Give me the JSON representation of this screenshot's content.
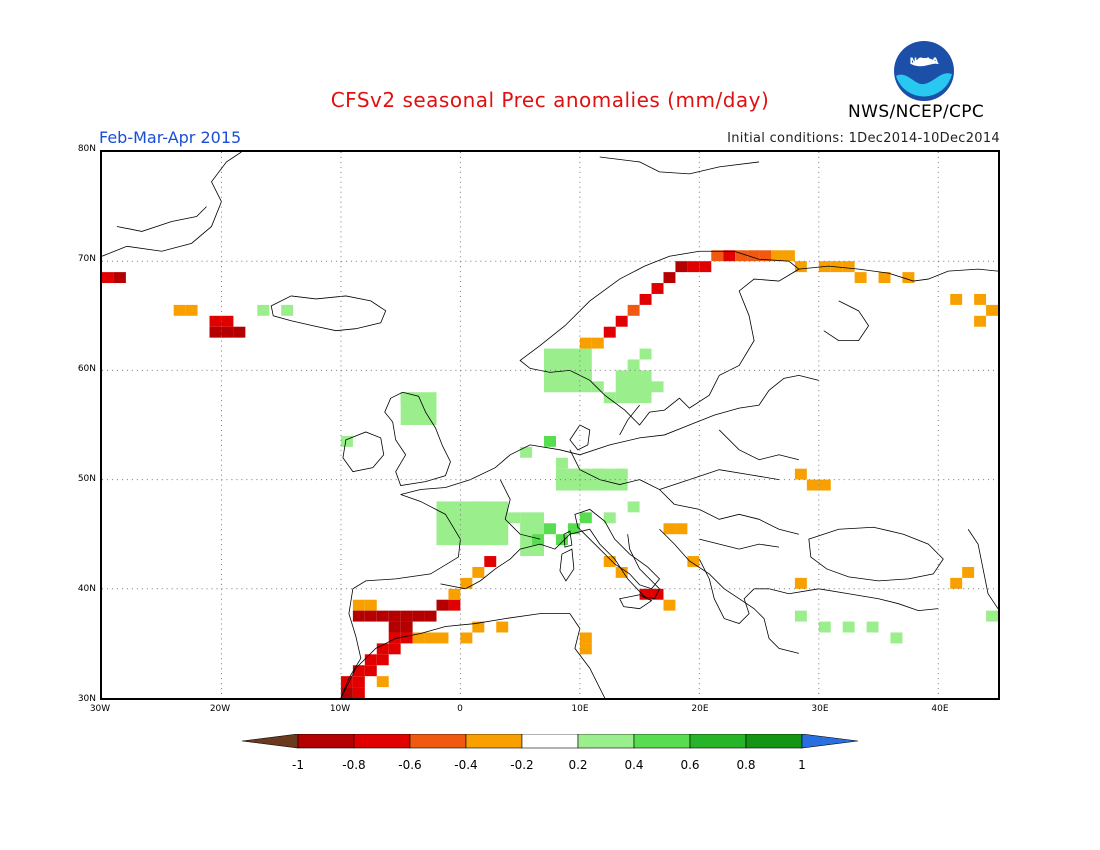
{
  "title": "CFSv2 seasonal Prec anomalies (mm/day)",
  "period": "Feb-Mar-Apr 2015",
  "initial_conditions": "Initial conditions: 1Dec2014-10Dec2014",
  "agency": "NWS/NCEP/CPC",
  "logo": {
    "text": "NOAA",
    "icon": "noaa-logo"
  },
  "map": {
    "lon_range": [
      -30,
      45
    ],
    "lat_range": [
      30,
      80
    ],
    "lat_labels": [
      "30N",
      "40N",
      "50N",
      "60N",
      "70N",
      "80N"
    ],
    "lon_labels": [
      "30W",
      "20W",
      "10W",
      "0",
      "10E",
      "20E",
      "30E",
      "40E"
    ],
    "grid": "dotted",
    "anomaly_cells": [
      {
        "lon": -30,
        "lat": 68.5,
        "v": -0.7
      },
      {
        "lon": -29,
        "lat": 68.5,
        "v": -0.8
      },
      {
        "lon": -24,
        "lat": 65.5,
        "v": -0.3
      },
      {
        "lon": -23,
        "lat": 65.5,
        "v": -0.3
      },
      {
        "lon": -21,
        "lat": 64.5,
        "v": -0.6
      },
      {
        "lon": -20,
        "lat": 64.5,
        "v": -0.6
      },
      {
        "lon": -21,
        "lat": 63.5,
        "v": -0.8
      },
      {
        "lon": -20,
        "lat": 63.5,
        "v": -0.8
      },
      {
        "lon": -19,
        "lat": 63.5,
        "v": -0.8
      },
      {
        "lon": -17,
        "lat": 65.5,
        "v": 0.3
      },
      {
        "lon": -15,
        "lat": 65.5,
        "v": 0.3
      },
      {
        "lon": 12,
        "lat": 63.5,
        "v": -0.6
      },
      {
        "lon": 13,
        "lat": 64.5,
        "v": -0.6
      },
      {
        "lon": 14,
        "lat": 65.5,
        "v": -0.5
      },
      {
        "lon": 15,
        "lat": 66.5,
        "v": -0.6
      },
      {
        "lon": 16,
        "lat": 67.5,
        "v": -0.7
      },
      {
        "lon": 17,
        "lat": 68.5,
        "v": -0.8
      },
      {
        "lon": 18,
        "lat": 69.5,
        "v": -0.8
      },
      {
        "lon": 19,
        "lat": 69.5,
        "v": -0.7
      },
      {
        "lon": 20,
        "lat": 69.5,
        "v": -0.6
      },
      {
        "lon": 21,
        "lat": 70.5,
        "v": -0.5
      },
      {
        "lon": 22,
        "lat": 70.5,
        "v": -0.6
      },
      {
        "lon": 23,
        "lat": 70.5,
        "v": -0.5
      },
      {
        "lon": 24,
        "lat": 70.5,
        "v": -0.5
      },
      {
        "lon": 25,
        "lat": 70.5,
        "v": -0.4
      },
      {
        "lon": 26,
        "lat": 70.5,
        "v": -0.3
      },
      {
        "lon": 27,
        "lat": 70.5,
        "v": -0.3
      },
      {
        "lon": 28,
        "lat": 69.5,
        "v": -0.3
      },
      {
        "lon": 30,
        "lat": 69.5,
        "v": -0.3
      },
      {
        "lon": 31,
        "lat": 69.5,
        "v": -0.3
      },
      {
        "lon": 32,
        "lat": 69.5,
        "v": -0.3
      },
      {
        "lon": 33,
        "lat": 68.5,
        "v": -0.3
      },
      {
        "lon": 35,
        "lat": 68.5,
        "v": -0.3
      },
      {
        "lon": 37,
        "lat": 68.5,
        "v": -0.3
      },
      {
        "lon": 41,
        "lat": 66.5,
        "v": -0.3
      },
      {
        "lon": 43,
        "lat": 66.5,
        "v": -0.3
      },
      {
        "lon": 44,
        "lat": 65.5,
        "v": -0.3
      },
      {
        "lon": 43,
        "lat": 64.5,
        "v": -0.3
      },
      {
        "lon": 10,
        "lat": 62.5,
        "v": -0.3
      },
      {
        "lon": 11,
        "lat": 62.5,
        "v": -0.3
      },
      {
        "lon": 9,
        "lat": 60.5,
        "v": 0.3
      },
      {
        "lon": 10,
        "lat": 59.5,
        "v": 0.3
      },
      {
        "lon": 11,
        "lat": 58.5,
        "v": 0.3
      },
      {
        "lon": 12,
        "lat": 57.5,
        "v": 0.3
      },
      {
        "lon": 14,
        "lat": 60.5,
        "v": 0.3
      },
      {
        "lon": 15,
        "lat": 61.5,
        "v": 0.3
      },
      {
        "lon": 16,
        "lat": 58.5,
        "v": 0.3
      },
      {
        "lon": -5,
        "lat": 57.5,
        "v": 0.3
      },
      {
        "lon": -4,
        "lat": 56.5,
        "v": 0.3
      },
      {
        "lon": -3,
        "lat": 55.5,
        "v": 0.3
      },
      {
        "lon": -10,
        "lat": 53.5,
        "v": 0.3
      },
      {
        "lon": 5,
        "lat": 52.5,
        "v": 0.3
      },
      {
        "lon": 7,
        "lat": 53.5,
        "v": 0.4
      },
      {
        "lon": 8,
        "lat": 51.5,
        "v": 0.3
      },
      {
        "lon": 9,
        "lat": 50.5,
        "v": 0.3
      },
      {
        "lon": 11,
        "lat": 50.5,
        "v": 0.3
      },
      {
        "lon": 13,
        "lat": 50.5,
        "v": 0.3
      },
      {
        "lon": 1,
        "lat": 47.5,
        "v": 0.3
      },
      {
        "lon": -1,
        "lat": 46.5,
        "v": 0.3
      },
      {
        "lon": 0,
        "lat": 45.5,
        "v": 0.3
      },
      {
        "lon": 2,
        "lat": 45.5,
        "v": 0.3
      },
      {
        "lon": 4,
        "lat": 46.5,
        "v": 0.3
      },
      {
        "lon": 6,
        "lat": 44.5,
        "v": 0.4
      },
      {
        "lon": 7,
        "lat": 45.5,
        "v": 0.4
      },
      {
        "lon": 8,
        "lat": 44.5,
        "v": 0.5
      },
      {
        "lon": 9,
        "lat": 45.5,
        "v": 0.4
      },
      {
        "lon": 10,
        "lat": 46.5,
        "v": 0.4
      },
      {
        "lon": 12,
        "lat": 46.5,
        "v": 0.3
      },
      {
        "lon": 14,
        "lat": 47.5,
        "v": 0.3
      },
      {
        "lon": 17,
        "lat": 45.5,
        "v": -0.3
      },
      {
        "lon": 18,
        "lat": 45.5,
        "v": -0.3
      },
      {
        "lon": 19,
        "lat": 42.5,
        "v": -0.3
      },
      {
        "lon": 12,
        "lat": 42.5,
        "v": -0.3
      },
      {
        "lon": 13,
        "lat": 41.5,
        "v": -0.3
      },
      {
        "lon": 15,
        "lat": 39.5,
        "v": -0.6
      },
      {
        "lon": 16,
        "lat": 39.5,
        "v": -0.6
      },
      {
        "lon": 17,
        "lat": 38.5,
        "v": -0.3
      },
      {
        "lon": 10,
        "lat": 35.5,
        "v": -0.3
      },
      {
        "lon": 10,
        "lat": 34.5,
        "v": -0.3
      },
      {
        "lon": 28,
        "lat": 50.5,
        "v": -0.3
      },
      {
        "lon": 29,
        "lat": 49.5,
        "v": -0.3
      },
      {
        "lon": 30,
        "lat": 49.5,
        "v": -0.3
      },
      {
        "lon": 28,
        "lat": 40.5,
        "v": -0.3
      },
      {
        "lon": 41,
        "lat": 40.5,
        "v": -0.3
      },
      {
        "lon": 42,
        "lat": 41.5,
        "v": -0.3
      },
      {
        "lon": 28,
        "lat": 37.5,
        "v": 0.3
      },
      {
        "lon": 30,
        "lat": 36.5,
        "v": 0.3
      },
      {
        "lon": 32,
        "lat": 36.5,
        "v": 0.3
      },
      {
        "lon": 34,
        "lat": 36.5,
        "v": 0.3
      },
      {
        "lon": 36,
        "lat": 35.5,
        "v": 0.3
      },
      {
        "lon": 44,
        "lat": 37.5,
        "v": 0.3
      },
      {
        "lon": -9,
        "lat": 38.5,
        "v": -0.3
      },
      {
        "lon": -8,
        "lat": 38.5,
        "v": -0.3
      },
      {
        "lon": -9,
        "lat": 37.5,
        "v": -0.8
      },
      {
        "lon": -8,
        "lat": 37.5,
        "v": -0.8
      },
      {
        "lon": -7,
        "lat": 37.5,
        "v": -0.8
      },
      {
        "lon": -6,
        "lat": 37.5,
        "v": -0.8
      },
      {
        "lon": -5,
        "lat": 37.5,
        "v": -0.8
      },
      {
        "lon": -4,
        "lat": 37.5,
        "v": -0.8
      },
      {
        "lon": -3,
        "lat": 37.5,
        "v": -0.8
      },
      {
        "lon": -2,
        "lat": 38.5,
        "v": -0.8
      },
      {
        "lon": -1,
        "lat": 38.5,
        "v": -0.6
      },
      {
        "lon": -1,
        "lat": 39.5,
        "v": -0.3
      },
      {
        "lon": 0,
        "lat": 40.5,
        "v": -0.3
      },
      {
        "lon": 1,
        "lat": 41.5,
        "v": -0.3
      },
      {
        "lon": 2,
        "lat": 42.5,
        "v": -0.6
      },
      {
        "lon": -6,
        "lat": 36.5,
        "v": -0.8
      },
      {
        "lon": -5,
        "lat": 36.5,
        "v": -0.8
      },
      {
        "lon": -6,
        "lat": 35.5,
        "v": -0.7
      },
      {
        "lon": -5,
        "lat": 35.5,
        "v": -0.6
      },
      {
        "lon": -4,
        "lat": 35.5,
        "v": -0.3
      },
      {
        "lon": -3,
        "lat": 35.5,
        "v": -0.3
      },
      {
        "lon": -2,
        "lat": 35.5,
        "v": -0.3
      },
      {
        "lon": 0,
        "lat": 35.5,
        "v": -0.3
      },
      {
        "lon": 1,
        "lat": 36.5,
        "v": -0.3
      },
      {
        "lon": 3,
        "lat": 36.5,
        "v": -0.3
      },
      {
        "lon": -7,
        "lat": 34.5,
        "v": -0.7
      },
      {
        "lon": -6,
        "lat": 34.5,
        "v": -0.6
      },
      {
        "lon": -8,
        "lat": 33.5,
        "v": -0.7
      },
      {
        "lon": -7,
        "lat": 33.5,
        "v": -0.6
      },
      {
        "lon": -9,
        "lat": 32.5,
        "v": -0.6
      },
      {
        "lon": -8,
        "lat": 32.5,
        "v": -0.6
      },
      {
        "lon": -7,
        "lat": 31.5,
        "v": -0.3
      },
      {
        "lon": -10,
        "lat": 31.5,
        "v": -0.7
      },
      {
        "lon": -9,
        "lat": 31.5,
        "v": -0.6
      },
      {
        "lon": -10,
        "lat": 30.5,
        "v": -0.8
      },
      {
        "lon": -9,
        "lat": 30.5,
        "v": -0.6
      }
    ],
    "anomaly_blocks": [
      {
        "lon0": -2,
        "lon1": 4,
        "lat0": 44,
        "lat1": 48,
        "v": 0.3
      },
      {
        "lon0": 5,
        "lon1": 7,
        "lat0": 43,
        "lat1": 47,
        "v": 0.3
      },
      {
        "lon0": 8,
        "lon1": 14,
        "lat0": 49,
        "lat1": 51,
        "v": 0.3
      },
      {
        "lon0": 7,
        "lon1": 11,
        "lat0": 58,
        "lat1": 62,
        "v": 0.3
      },
      {
        "lon0": 13,
        "lon1": 16,
        "lat0": 57,
        "lat1": 60,
        "v": 0.3
      },
      {
        "lon0": -5,
        "lon1": -2,
        "lat0": 55,
        "lat1": 58,
        "v": 0.3
      }
    ]
  },
  "colorbar": {
    "ticks": [
      "-1",
      "-0.8",
      "-0.6",
      "-0.4",
      "-0.2",
      "0.2",
      "0.4",
      "0.6",
      "0.8",
      "1"
    ],
    "colors": [
      "#6b3a1e",
      "#b40000",
      "#e00000",
      "#f05a10",
      "#f8a000",
      "#ffffff",
      "#9aee8c",
      "#58dc50",
      "#28b428",
      "#149614",
      "#2a6ee0"
    ]
  }
}
